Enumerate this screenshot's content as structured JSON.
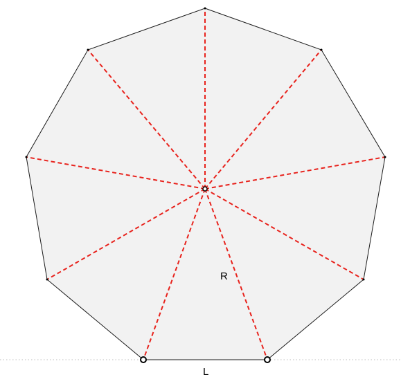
{
  "figure": {
    "shape": "regular nonagon",
    "sides": 9,
    "radius_label": "R",
    "side_label": "L",
    "colors": {
      "fill": "#f2f2f2",
      "edge": "#1a1a1a",
      "radius_lines": "#e8221c",
      "baseline": "#bdbdbd",
      "points": "#000000"
    }
  }
}
